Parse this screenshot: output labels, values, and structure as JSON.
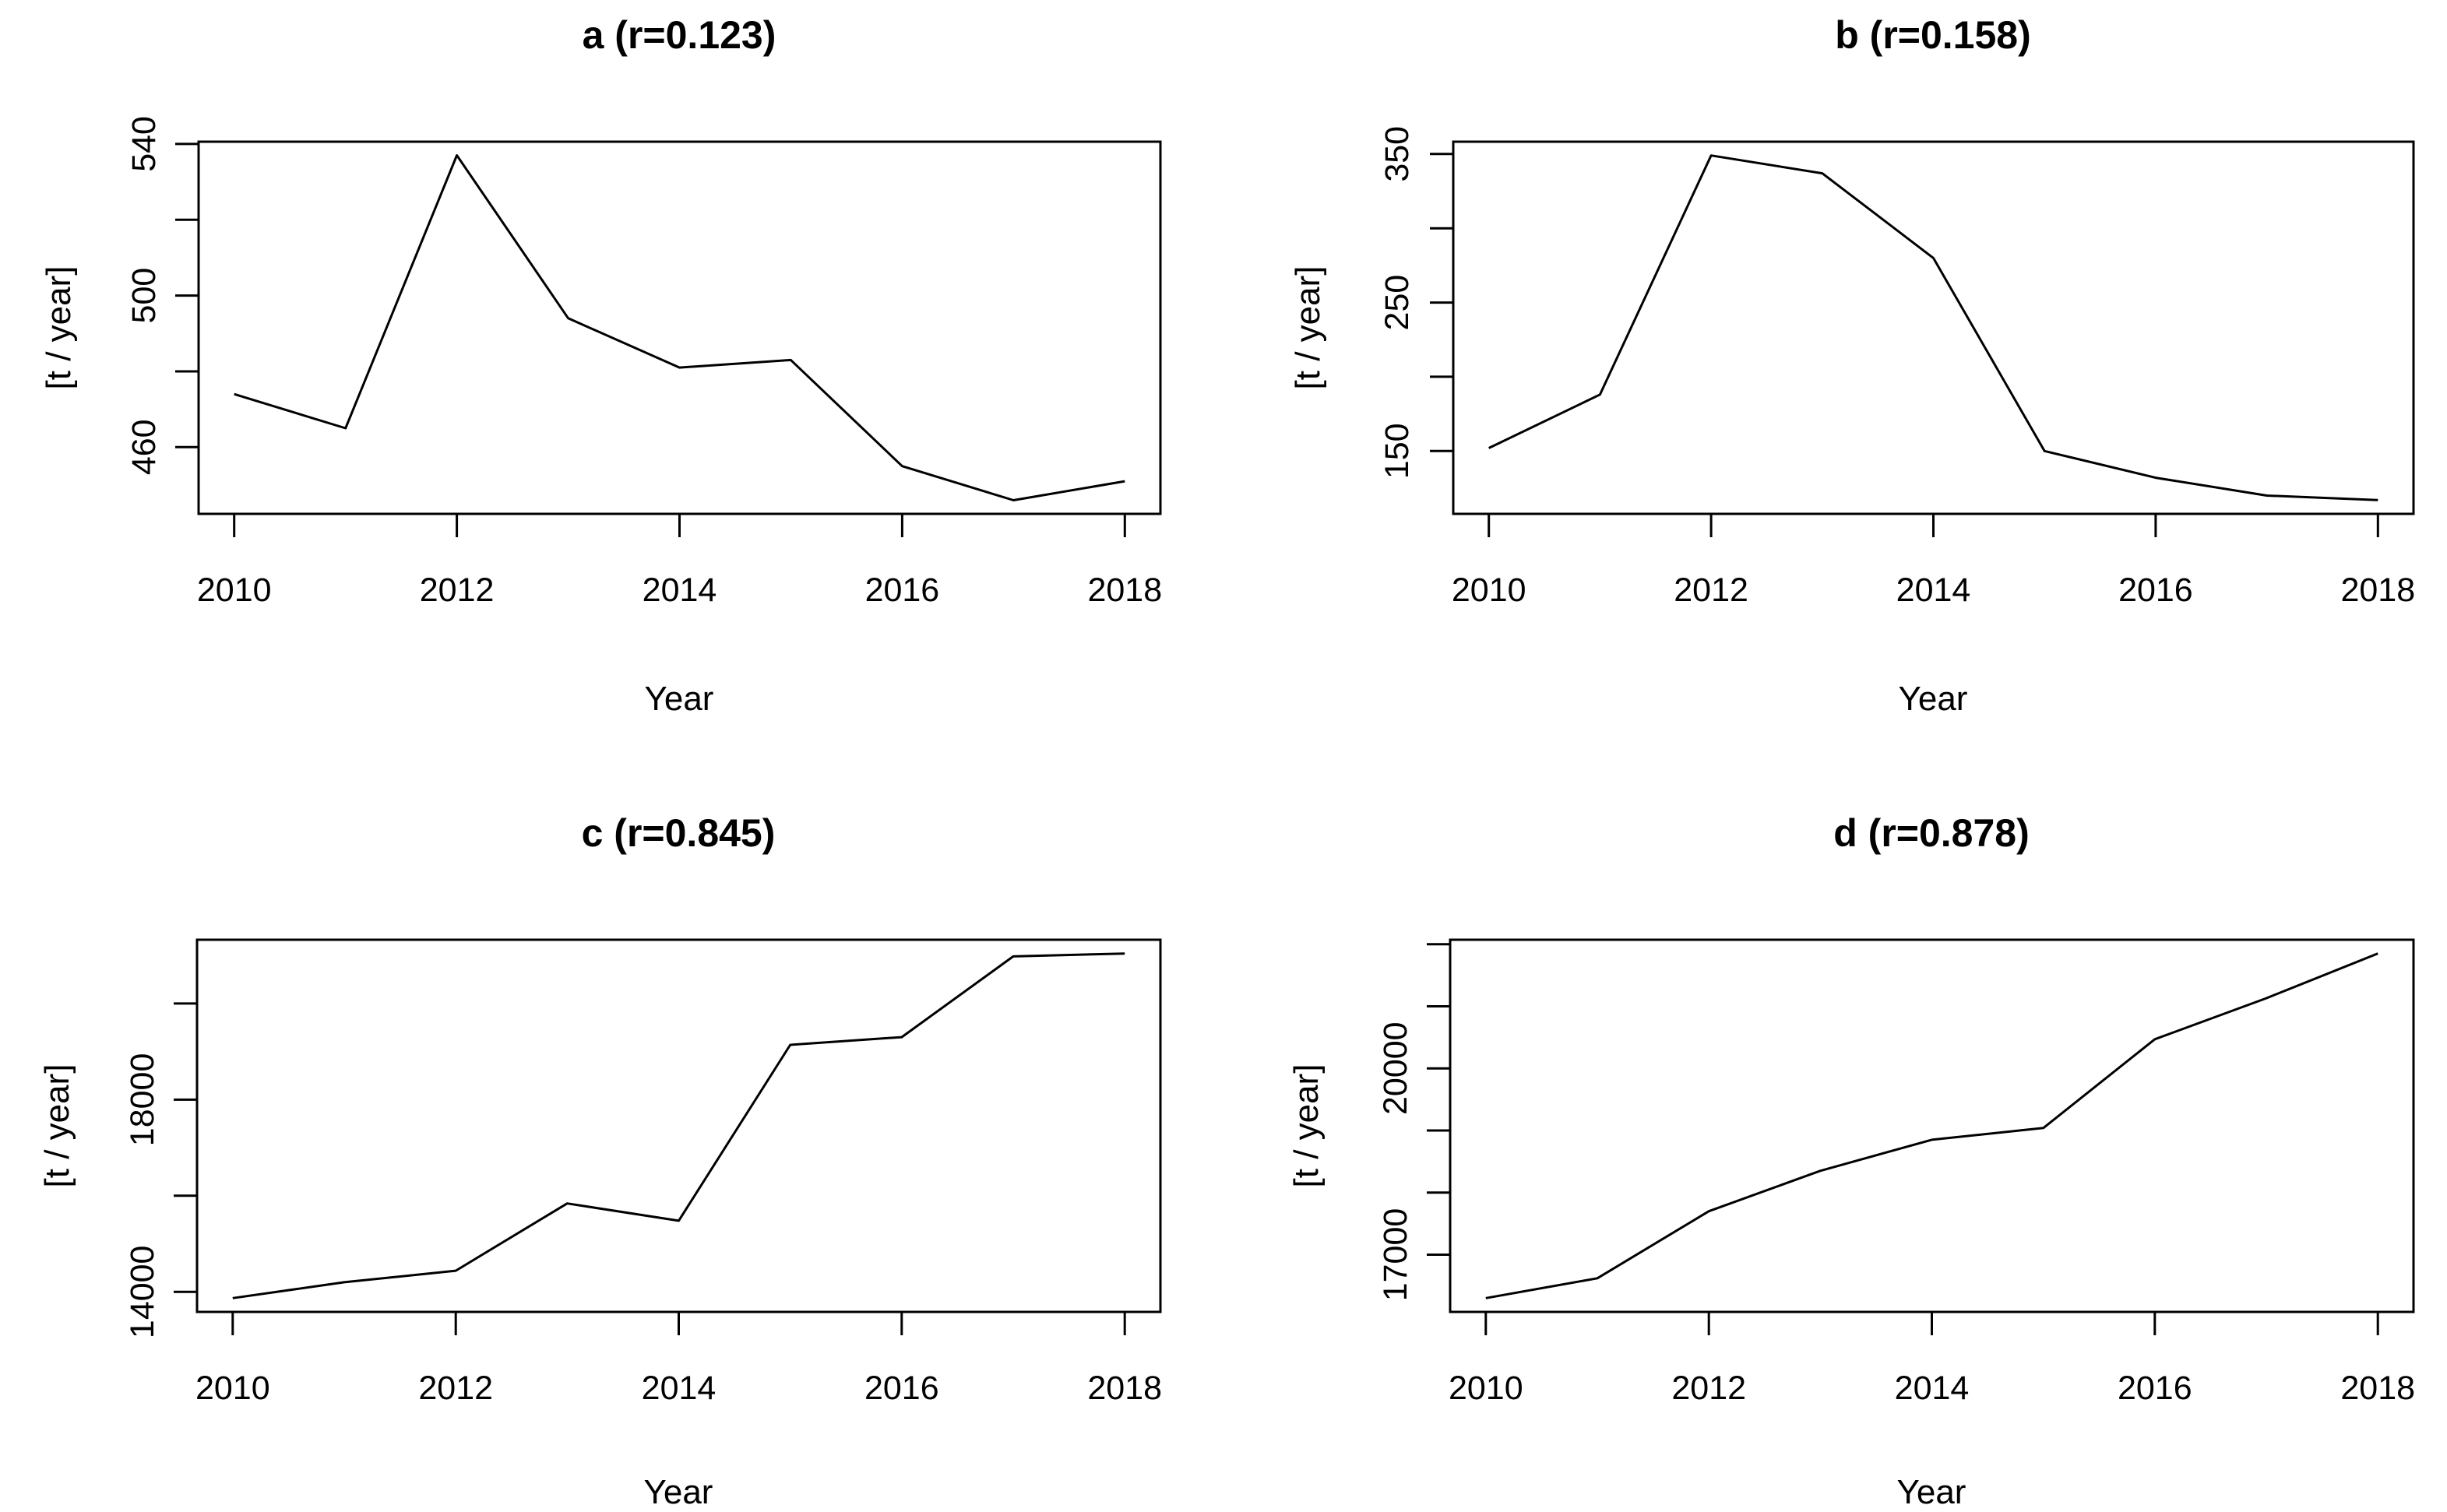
{
  "figure": {
    "background": "#ffffff",
    "foreground": "#000000",
    "kind": "2x2 grid of base-R line plots, black on white, no legend, no gridlines"
  },
  "chart_data": [
    {
      "type": "line",
      "panel": "a",
      "title": "a (r=0.123)",
      "xlabel": "Year",
      "ylabel": "[t / year]",
      "line_color": "#000000",
      "x": [
        2010,
        2011,
        2012,
        2013,
        2014,
        2015,
        2016,
        2017,
        2018
      ],
      "values": [
        474,
        465,
        537,
        494,
        481,
        483,
        455,
        446,
        451
      ],
      "xlim": [
        2009.68,
        2018.32
      ],
      "ylim": [
        442.4,
        540.6
      ],
      "xticks": [
        2010,
        2012,
        2014,
        2016,
        2018
      ],
      "xtick_labels": [
        "2010",
        "2012",
        "2014",
        "2016",
        "2018"
      ],
      "yticks": [
        460,
        480,
        500,
        520,
        540
      ],
      "ytick_labels": [
        "460",
        "",
        "500",
        "",
        "540"
      ],
      "grid": false,
      "legend": null
    },
    {
      "type": "line",
      "panel": "b",
      "title": "b (r=0.158)",
      "xlabel": "Year",
      "ylabel": "[t / year]",
      "line_color": "#000000",
      "x": [
        2010,
        2011,
        2012,
        2013,
        2014,
        2015,
        2016,
        2017,
        2018
      ],
      "values": [
        152,
        188,
        349,
        337,
        280,
        150,
        132,
        120,
        117
      ],
      "xlim": [
        2009.68,
        2018.32
      ],
      "ylim": [
        107.7,
        358.3
      ],
      "xticks": [
        2010,
        2012,
        2014,
        2016,
        2018
      ],
      "xtick_labels": [
        "2010",
        "2012",
        "2014",
        "2016",
        "2018"
      ],
      "yticks": [
        150,
        200,
        250,
        300,
        350
      ],
      "ytick_labels": [
        "150",
        "",
        "250",
        "",
        "350"
      ],
      "grid": false,
      "legend": null
    },
    {
      "type": "line",
      "panel": "c",
      "title": "c (r=0.845)",
      "xlabel": "Year",
      "ylabel": "[t / year]",
      "line_color": "#000000",
      "x": [
        2010,
        2011,
        2012,
        2013,
        2014,
        2015,
        2016,
        2017,
        2018
      ],
      "values": [
        13870,
        14200,
        14440,
        15840,
        15480,
        19140,
        19300,
        20980,
        21040
      ],
      "xlim": [
        2009.68,
        2018.32
      ],
      "ylim": [
        13583,
        21327
      ],
      "xticks": [
        2010,
        2012,
        2014,
        2016,
        2018
      ],
      "xtick_labels": [
        "2010",
        "2012",
        "2014",
        "2016",
        "2018"
      ],
      "yticks": [
        14000,
        16000,
        18000,
        20000
      ],
      "ytick_labels": [
        "14000",
        "",
        "18000",
        ""
      ],
      "grid": false,
      "legend": null
    },
    {
      "type": "line",
      "panel": "d",
      "title": "d (r=0.878)",
      "xlabel": "Year",
      "ylabel": "[t / year]",
      "line_color": "#000000",
      "x": [
        2010,
        2011,
        2012,
        2013,
        2014,
        2015,
        2016,
        2017,
        2018
      ],
      "values": [
        16300,
        16620,
        17700,
        18350,
        18850,
        19040,
        20470,
        21130,
        21850
      ],
      "xlim": [
        2009.68,
        2018.32
      ],
      "ylim": [
        16078,
        22072
      ],
      "xticks": [
        2010,
        2012,
        2014,
        2016,
        2018
      ],
      "xtick_labels": [
        "2010",
        "2012",
        "2014",
        "2016",
        "2018"
      ],
      "yticks": [
        17000,
        18000,
        19000,
        20000,
        21000,
        22000
      ],
      "ytick_labels": [
        "17000",
        "",
        "",
        "20000",
        "",
        ""
      ],
      "grid": false,
      "legend": null
    }
  ]
}
